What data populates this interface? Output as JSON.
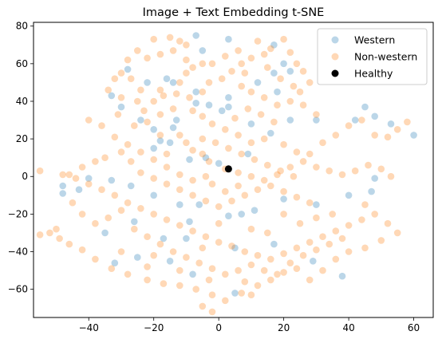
{
  "chart_data": {
    "type": "scatter",
    "title": "Image + Text Embedding t-SNE",
    "xlabel": "",
    "ylabel": "",
    "xlim": [
      -57,
      66
    ],
    "ylim": [
      -75,
      82
    ],
    "xticks": [
      -60,
      -40,
      -20,
      0,
      20,
      40,
      60
    ],
    "yticks": [
      -60,
      -40,
      -20,
      0,
      20,
      40,
      60,
      80
    ],
    "grid": false,
    "legend_placement": "top-right",
    "series": [
      {
        "name": "Western",
        "color": "#1f77b4",
        "alpha": 0.3,
        "points": [
          [
            -7,
            75
          ],
          [
            -28,
            57
          ],
          [
            -22,
            50
          ],
          [
            -16,
            52
          ],
          [
            -14,
            50
          ],
          [
            -5,
            67
          ],
          [
            -7,
            45
          ],
          [
            3,
            73
          ],
          [
            17,
            70
          ],
          [
            20,
            60
          ],
          [
            17,
            55
          ],
          [
            22,
            56
          ],
          [
            12,
            50
          ],
          [
            3,
            42
          ],
          [
            -3,
            38
          ],
          [
            1,
            35
          ],
          [
            -7,
            39
          ],
          [
            -13,
            30
          ],
          [
            -14,
            26
          ],
          [
            -20,
            25
          ],
          [
            -30,
            37
          ],
          [
            -33,
            43
          ],
          [
            -24,
            30
          ],
          [
            18,
            45
          ],
          [
            16,
            23
          ],
          [
            22,
            30
          ],
          [
            30,
            30
          ],
          [
            42,
            30
          ],
          [
            45,
            37
          ],
          [
            48,
            32
          ],
          [
            53,
            28
          ],
          [
            60,
            22
          ],
          [
            10,
            28
          ],
          [
            9,
            12
          ],
          [
            0,
            7
          ],
          [
            -9,
            9
          ],
          [
            -18,
            19
          ],
          [
            -15,
            18
          ],
          [
            -20,
            15
          ],
          [
            -27,
            -5
          ],
          [
            -33,
            -2
          ],
          [
            -40,
            -1
          ],
          [
            -48,
            -5
          ],
          [
            -43,
            -7
          ],
          [
            -48,
            -9
          ],
          [
            -20,
            -10
          ],
          [
            -12,
            -15
          ],
          [
            -6,
            -15
          ],
          [
            3,
            -21
          ],
          [
            7,
            -20
          ],
          [
            11,
            -18
          ],
          [
            20,
            -12
          ],
          [
            30,
            -15
          ],
          [
            40,
            -10
          ],
          [
            47,
            -8
          ],
          [
            -9,
            -24
          ],
          [
            -26,
            -24
          ],
          [
            -35,
            -30
          ],
          [
            -17,
            -33
          ],
          [
            -10,
            -33
          ],
          [
            5,
            -38
          ],
          [
            17,
            -36
          ],
          [
            29,
            -45
          ],
          [
            38,
            -53
          ],
          [
            -25,
            -43
          ],
          [
            -15,
            -45
          ],
          [
            -32,
            -46
          ],
          [
            -8,
            -52
          ],
          [
            5,
            -62
          ],
          [
            48,
            -1
          ],
          [
            3,
            37
          ],
          [
            -4,
            10
          ]
        ]
      },
      {
        "name": "Non-western",
        "color": "#ff7f0e",
        "alpha": 0.3,
        "points": [
          [
            -20,
            73
          ],
          [
            -15,
            74
          ],
          [
            -12,
            72
          ],
          [
            -10,
            70
          ],
          [
            -14,
            67
          ],
          [
            -18,
            65
          ],
          [
            -22,
            63
          ],
          [
            -25,
            67
          ],
          [
            -28,
            62
          ],
          [
            -30,
            55
          ],
          [
            -27,
            52
          ],
          [
            -24,
            46
          ],
          [
            -32,
            52
          ],
          [
            -34,
            46
          ],
          [
            -30,
            42
          ],
          [
            -25,
            40
          ],
          [
            -23,
            35
          ],
          [
            -20,
            40
          ],
          [
            -17,
            43
          ],
          [
            -13,
            44
          ],
          [
            -9,
            42
          ],
          [
            -5,
            45
          ],
          [
            -3,
            50
          ],
          [
            1,
            52
          ],
          [
            4,
            56
          ],
          [
            7,
            60
          ],
          [
            10,
            63
          ],
          [
            14,
            65
          ],
          [
            16,
            68
          ],
          [
            12,
            72
          ],
          [
            20,
            73
          ],
          [
            22,
            66
          ],
          [
            24,
            60
          ],
          [
            26,
            56
          ],
          [
            28,
            50
          ],
          [
            25,
            45
          ],
          [
            22,
            40
          ],
          [
            18,
            38
          ],
          [
            14,
            42
          ],
          [
            10,
            45
          ],
          [
            7,
            48
          ],
          [
            8,
            55
          ],
          [
            -5,
            60
          ],
          [
            -8,
            58
          ],
          [
            -10,
            55
          ],
          [
            -12,
            50
          ],
          [
            -18,
            46
          ],
          [
            -8,
            35
          ],
          [
            -5,
            32
          ],
          [
            -2,
            28
          ],
          [
            2,
            25
          ],
          [
            6,
            22
          ],
          [
            10,
            18
          ],
          [
            14,
            20
          ],
          [
            20,
            17
          ],
          [
            24,
            13
          ],
          [
            28,
            12
          ],
          [
            32,
            18
          ],
          [
            36,
            22
          ],
          [
            40,
            27
          ],
          [
            44,
            30
          ],
          [
            48,
            22
          ],
          [
            52,
            21
          ],
          [
            55,
            25
          ],
          [
            58,
            29
          ],
          [
            -12,
            22
          ],
          [
            -10,
            18
          ],
          [
            -8,
            14
          ],
          [
            -5,
            12
          ],
          [
            -3,
            8
          ],
          [
            2,
            4
          ],
          [
            6,
            2
          ],
          [
            10,
            0
          ],
          [
            14,
            -2
          ],
          [
            18,
            1
          ],
          [
            22,
            5
          ],
          [
            26,
            8
          ],
          [
            30,
            5
          ],
          [
            34,
            3
          ],
          [
            38,
            1
          ],
          [
            42,
            3
          ],
          [
            46,
            6
          ],
          [
            50,
            4
          ],
          [
            53,
            0
          ],
          [
            -55,
            3
          ],
          [
            -48,
            1
          ],
          [
            -44,
            -1
          ],
          [
            -40,
            -4
          ],
          [
            -36,
            -7
          ],
          [
            -32,
            -10
          ],
          [
            -28,
            -14
          ],
          [
            -24,
            -17
          ],
          [
            -20,
            -20
          ],
          [
            -16,
            -23
          ],
          [
            -12,
            -26
          ],
          [
            -8,
            -29
          ],
          [
            -4,
            -32
          ],
          [
            0,
            -35
          ],
          [
            4,
            -37
          ],
          [
            8,
            -40
          ],
          [
            12,
            -42
          ],
          [
            16,
            -44
          ],
          [
            20,
            -41
          ],
          [
            24,
            -38
          ],
          [
            28,
            -35
          ],
          [
            32,
            -32
          ],
          [
            36,
            -29
          ],
          [
            40,
            -26
          ],
          [
            44,
            -23
          ],
          [
            48,
            -20
          ],
          [
            52,
            -25
          ],
          [
            -52,
            -30
          ],
          [
            -49,
            -33
          ],
          [
            -46,
            -36
          ],
          [
            -42,
            -39
          ],
          [
            -38,
            -44
          ],
          [
            -33,
            -49
          ],
          [
            -28,
            -52
          ],
          [
            -22,
            -55
          ],
          [
            -17,
            -57
          ],
          [
            -12,
            -58
          ],
          [
            -7,
            -60
          ],
          [
            -2,
            -63
          ],
          [
            2,
            -66
          ],
          [
            7,
            -62
          ],
          [
            12,
            -58
          ],
          [
            16,
            -55
          ],
          [
            20,
            -51
          ],
          [
            24,
            -49
          ],
          [
            28,
            -55
          ],
          [
            32,
            -50
          ],
          [
            36,
            -44
          ],
          [
            40,
            -40
          ],
          [
            45,
            -38
          ],
          [
            50,
            -34
          ],
          [
            -45,
            -14
          ],
          [
            -42,
            -20
          ],
          [
            -38,
            -25
          ],
          [
            -34,
            -22
          ],
          [
            -30,
            -18
          ],
          [
            -26,
            -28
          ],
          [
            -22,
            -32
          ],
          [
            -18,
            -36
          ],
          [
            -14,
            -40
          ],
          [
            -10,
            -43
          ],
          [
            -6,
            -46
          ],
          [
            -2,
            -49
          ],
          [
            2,
            -52
          ],
          [
            6,
            -50
          ],
          [
            10,
            -47
          ],
          [
            14,
            -50
          ],
          [
            18,
            -52
          ],
          [
            22,
            -46
          ],
          [
            26,
            -42
          ],
          [
            30,
            -39
          ],
          [
            34,
            -36
          ],
          [
            38,
            -33
          ],
          [
            -35,
            10
          ],
          [
            -30,
            13
          ],
          [
            -27,
            8
          ],
          [
            -24,
            2
          ],
          [
            -20,
            -1
          ],
          [
            -16,
            -4
          ],
          [
            -12,
            -7
          ],
          [
            -8,
            -10
          ],
          [
            -4,
            -13
          ],
          [
            0,
            -16
          ],
          [
            4,
            -13
          ],
          [
            8,
            -10
          ],
          [
            12,
            -7
          ],
          [
            16,
            -5
          ],
          [
            20,
            -8
          ],
          [
            24,
            -11
          ],
          [
            28,
            -14
          ],
          [
            -38,
            8
          ],
          [
            -42,
            5
          ],
          [
            -46,
            1
          ],
          [
            -5,
            20
          ],
          [
            -1,
            18
          ],
          [
            3,
            15
          ],
          [
            7,
            12
          ],
          [
            11,
            9
          ],
          [
            15,
            6
          ],
          [
            19,
            3
          ],
          [
            23,
            0
          ],
          [
            -2,
            -4
          ],
          [
            2,
            -8
          ],
          [
            6,
            -5
          ],
          [
            -8,
            -2
          ],
          [
            -12,
            1
          ],
          [
            -16,
            5
          ],
          [
            -20,
            9
          ],
          [
            -24,
            13
          ],
          [
            -28,
            17
          ],
          [
            -32,
            21
          ],
          [
            -36,
            27
          ],
          [
            -40,
            30
          ],
          [
            -16,
            12
          ],
          [
            -4,
            0
          ],
          [
            0,
            -25
          ],
          [
            -5,
            -38
          ],
          [
            15,
            -30
          ],
          [
            25,
            -25
          ],
          [
            35,
            -20
          ],
          [
            45,
            -15
          ],
          [
            55,
            -30
          ],
          [
            -50,
            -28
          ],
          [
            -55,
            -31
          ],
          [
            -22,
            -48
          ],
          [
            -30,
            -40
          ],
          [
            30,
            -22
          ],
          [
            20,
            -20
          ],
          [
            10,
            -28
          ],
          [
            -20,
            -42
          ],
          [
            -12,
            -50
          ],
          [
            -3,
            -55
          ],
          [
            8,
            -56
          ],
          [
            -5,
            -69
          ],
          [
            -2,
            -72
          ],
          [
            10,
            -63
          ],
          [
            -18,
            22
          ],
          [
            -26,
            27
          ],
          [
            -31,
            33
          ],
          [
            5,
            31
          ],
          [
            9,
            36
          ],
          [
            13,
            33
          ],
          [
            17,
            29
          ],
          [
            -14,
            36
          ],
          [
            -18,
            33
          ],
          [
            -22,
            29
          ],
          [
            -10,
            62
          ],
          [
            -2,
            60
          ],
          [
            2,
            64
          ],
          [
            6,
            67
          ],
          [
            15,
            58
          ],
          [
            19,
            52
          ],
          [
            23,
            48
          ],
          [
            26,
            38
          ],
          [
            30,
            33
          ]
        ]
      },
      {
        "name": "Healthy",
        "color": "#000000",
        "alpha": 1,
        "points": [
          [
            3,
            4
          ]
        ]
      }
    ]
  }
}
